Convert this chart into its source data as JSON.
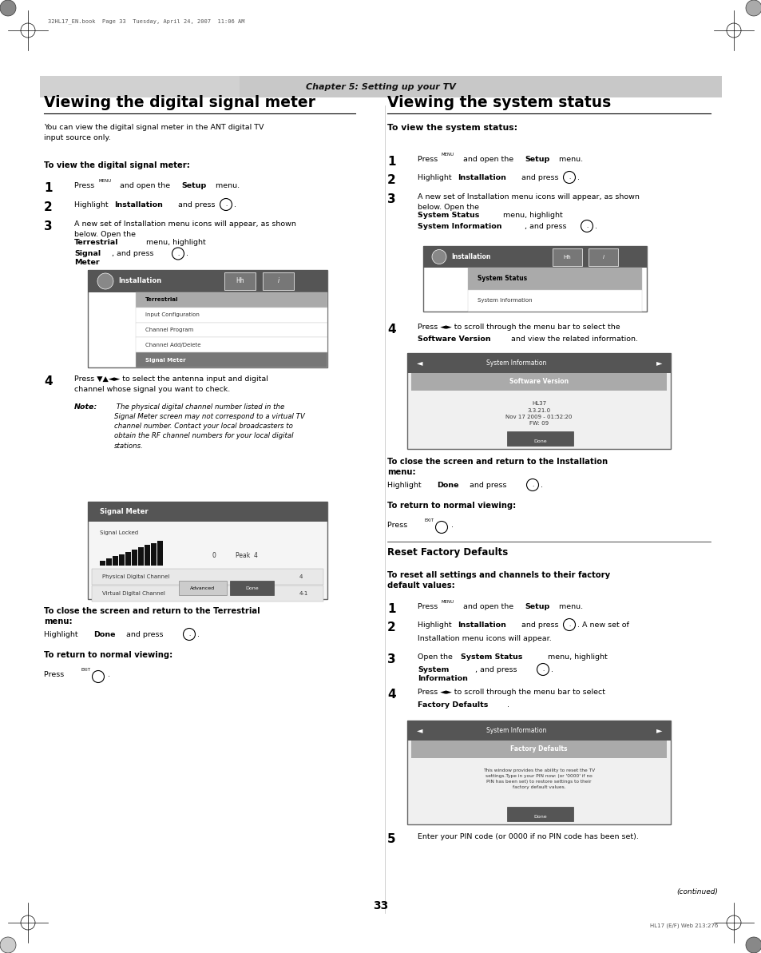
{
  "bg_color": "#ffffff",
  "page_width": 9.54,
  "page_height": 11.93,
  "chapter_bar_text": "Chapter 5: Setting up your TV",
  "left_title": "Viewing the digital signal meter",
  "right_title": "Viewing the system status",
  "page_number": "33",
  "footer_text": "HL17 (E/F) Web 213:276",
  "header_file": "32HL17_EN.book  Page 33  Tuesday, April 24, 2007  11:06 AM"
}
